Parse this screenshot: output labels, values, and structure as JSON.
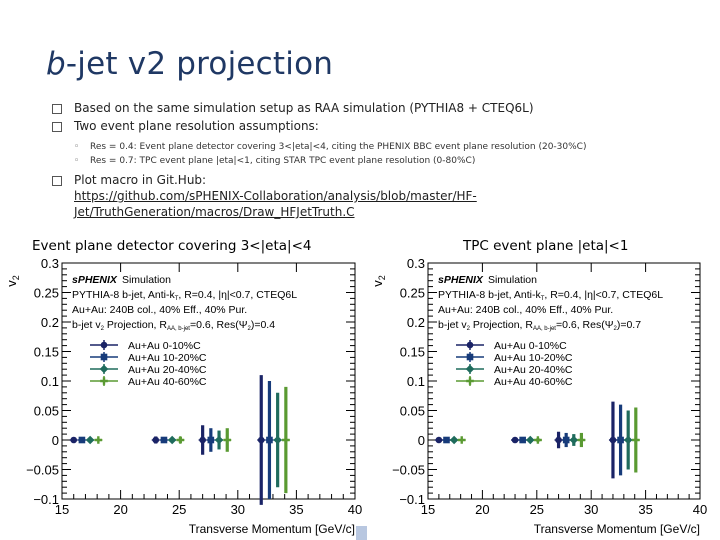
{
  "slide": {
    "title_italic": "b",
    "title_rest": "-jet v2 projection",
    "bullets": [
      "Based on the same simulation setup as RAA simulation (PYTHIA8 + CTEQ6L)",
      "Two event plane resolution assumptions:"
    ],
    "sub_bullets": [
      "Res = 0.4: Event plane detector covering 3<|eta|<4, citing the PHENIX BBC event plane resolution (20-30%C)",
      "Res = 0.7: TPC event plane |eta|<1, citing STAR TPC event plane resolution (0-80%C)"
    ],
    "macro_label": "Plot macro in Git.Hub:",
    "macro_link_line1": "https://github.com/sPHENIX-Collaboration/analysis/blob/master/HF-",
    "macro_link_line2": "Jet/TruthGeneration/macros/Draw_HFJetTruth.C"
  },
  "panels": [
    {
      "caption": "Event plane detector covering 3<|eta|<4",
      "legend": {
        "line1": "sPHENIX  Simulation",
        "line2": "PYTHIA-8  b-jet, Anti-k",
        "line2_sub": "T",
        "line2_tail": ", R=0.4, |η|<0.7, CTEQ6L",
        "line3": "Au+Au: 240B col., 40% Eff., 40% Pur.",
        "line4": "b-jet v",
        "line4_sub": "2",
        "line4_tail": " Projection, R",
        "line4_sub2": "AA, b-jet",
        "line4_end": "=0.6, Res(Ψ",
        "line4_sub3": "2",
        "line4_final": ")=0.4"
      }
    },
    {
      "caption": "TPC event plane |eta|<1",
      "legend": {
        "line1": "sPHENIX  Simulation",
        "line2": "PYTHIA-8  b-jet, Anti-k",
        "line2_sub": "T",
        "line2_tail": ", R=0.4, |η|<0.7, CTEQ6L",
        "line3": "Au+Au: 240B col., 40% Eff., 40% Pur.",
        "line4": "b-jet v",
        "line4_sub": "2",
        "line4_tail": " Projection, R",
        "line4_sub2": "AA, b-jet",
        "line4_end": "=0.6, Res(Ψ",
        "line4_sub3": "2",
        "line4_final": ")=0.7"
      }
    }
  ],
  "chart_data": [
    {
      "type": "scatter",
      "title": "",
      "xlabel": "Transverse Momentum [GeV/c]",
      "ylabel": "v2",
      "xlim": [
        15,
        40
      ],
      "ylim": [
        -0.1,
        0.3
      ],
      "x_ticks": [
        "15",
        "20",
        "25",
        "30",
        "35",
        "40"
      ],
      "y_ticks": [
        "−0.1",
        "−0.05",
        "0",
        "0.05",
        "0.1",
        "0.15",
        "0.2",
        "0.25",
        "0.3"
      ],
      "series": [
        {
          "name": "Au+Au 0-10%C",
          "color": "#1a2366",
          "marker": "circle",
          "x": [
            16.0,
            23.0,
            27.0,
            32.0
          ],
          "y": [
            0,
            0,
            0,
            0
          ],
          "err": [
            0.002,
            0.006,
            0.025,
            0.11
          ]
        },
        {
          "name": "Au+Au 10-20%C",
          "color": "#173b7a",
          "marker": "square",
          "x": [
            16.7,
            23.7,
            27.7,
            32.7
          ],
          "y": [
            0,
            0,
            0,
            0
          ],
          "err": [
            0.002,
            0.005,
            0.02,
            0.1
          ]
        },
        {
          "name": "Au+Au 20-40%C",
          "color": "#1f6b5c",
          "marker": "diamond",
          "x": [
            17.4,
            24.4,
            28.4,
            33.4
          ],
          "y": [
            0,
            0,
            0,
            0
          ],
          "err": [
            0.002,
            0.004,
            0.016,
            0.08
          ]
        },
        {
          "name": "Au+Au 40-60%C",
          "color": "#5a9a32",
          "marker": "cross",
          "x": [
            18.1,
            25.1,
            29.1,
            34.1
          ],
          "y": [
            0,
            0,
            0,
            0
          ],
          "err": [
            0.002,
            0.005,
            0.02,
            0.09
          ]
        }
      ]
    },
    {
      "type": "scatter",
      "title": "",
      "xlabel": "Transverse Momentum [GeV/c]",
      "ylabel": "v2",
      "xlim": [
        15,
        40
      ],
      "ylim": [
        -0.1,
        0.3
      ],
      "x_ticks": [
        "15",
        "20",
        "25",
        "30",
        "35",
        "40"
      ],
      "y_ticks": [
        "−0.1",
        "−0.05",
        "0",
        "0.05",
        "0.1",
        "0.15",
        "0.2",
        "0.25",
        "0.3"
      ],
      "series": [
        {
          "name": "Au+Au 0-10%C",
          "color": "#1a2366",
          "marker": "circle",
          "x": [
            16.0,
            23.0,
            27.0,
            32.0
          ],
          "y": [
            0,
            0,
            0,
            0
          ],
          "err": [
            0.001,
            0.004,
            0.014,
            0.065
          ]
        },
        {
          "name": "Au+Au 10-20%C",
          "color": "#173b7a",
          "marker": "square",
          "x": [
            16.7,
            23.7,
            27.7,
            32.7
          ],
          "y": [
            0,
            0,
            0,
            0
          ],
          "err": [
            0.001,
            0.003,
            0.012,
            0.06
          ]
        },
        {
          "name": "Au+Au 20-40%C",
          "color": "#1f6b5c",
          "marker": "diamond",
          "x": [
            17.4,
            24.4,
            28.4,
            33.4
          ],
          "y": [
            0,
            0,
            0,
            0
          ],
          "err": [
            0.001,
            0.003,
            0.01,
            0.05
          ]
        },
        {
          "name": "Au+Au 40-60%C",
          "color": "#5a9a32",
          "marker": "cross",
          "x": [
            18.1,
            25.1,
            29.1,
            34.1
          ],
          "y": [
            0,
            0,
            0,
            0
          ],
          "err": [
            0.001,
            0.003,
            0.012,
            0.055
          ]
        }
      ]
    }
  ]
}
